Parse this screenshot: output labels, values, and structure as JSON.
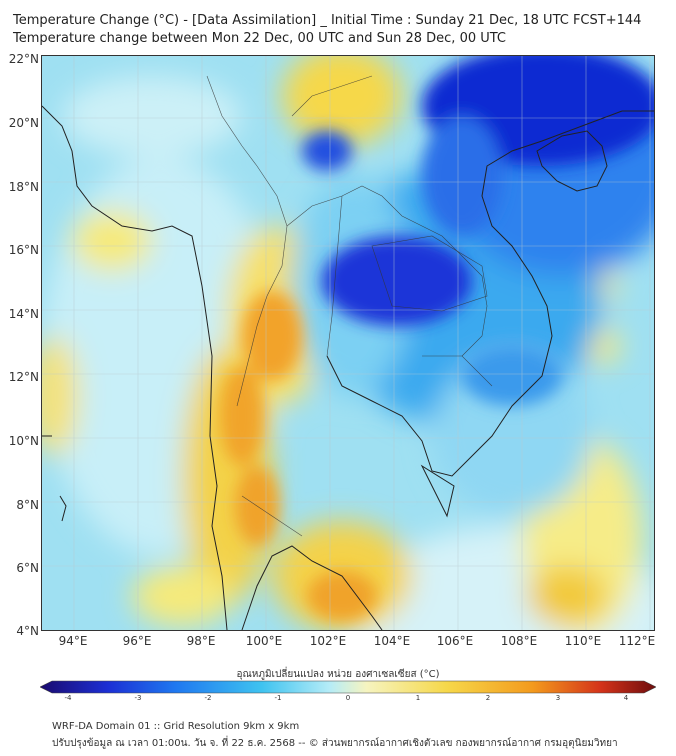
{
  "title": {
    "line1": "Temperature Change (°C) - [Data Assimilation] _ Initial Time : Sunday 21 Dec, 18 UTC FCST+144",
    "line2": "Temperature change between Mon 22 Dec, 00 UTC and Sun 28 Dec, 00 UTC"
  },
  "axes": {
    "lat_labels": [
      "22°N",
      "20°N",
      "18°N",
      "16°N",
      "14°N",
      "12°N",
      "10°N",
      "8°N",
      "6°N",
      "4°N"
    ],
    "lon_labels": [
      "94°E",
      "96°E",
      "98°E",
      "100°E",
      "102°E",
      "104°E",
      "106°E",
      "108°E",
      "110°E",
      "112°E"
    ]
  },
  "colorbar": {
    "label": "อุณหภูมิเปลี่ยนแปลง หน่วย องศาเซลเซียส (°C)",
    "ticks": [
      "-4",
      "-3",
      "-2",
      "-1",
      "0",
      "1",
      "2",
      "3",
      "4"
    ],
    "colors": [
      "#1a0a6e",
      "#1c2fd4",
      "#1f78f0",
      "#3fc3f0",
      "#b5ecf7",
      "#f6f4c0",
      "#f6d84a",
      "#f39a1d",
      "#d4331a",
      "#6e0d0d"
    ]
  },
  "footer": {
    "line1": "WRF-DA Domain 01 :: Grid Resolution 9km x 9km",
    "line2": "ปรับปรุงข้อมูล ณ เวลา 01:00น. วัน จ. ที่ 22 ธ.ค. 2568 -- © ส่วนพยากรณ์อากาศเชิงตัวเลข กองพยากรณ์อากาศ กรมอุตุนิยมวิทยา"
  }
}
